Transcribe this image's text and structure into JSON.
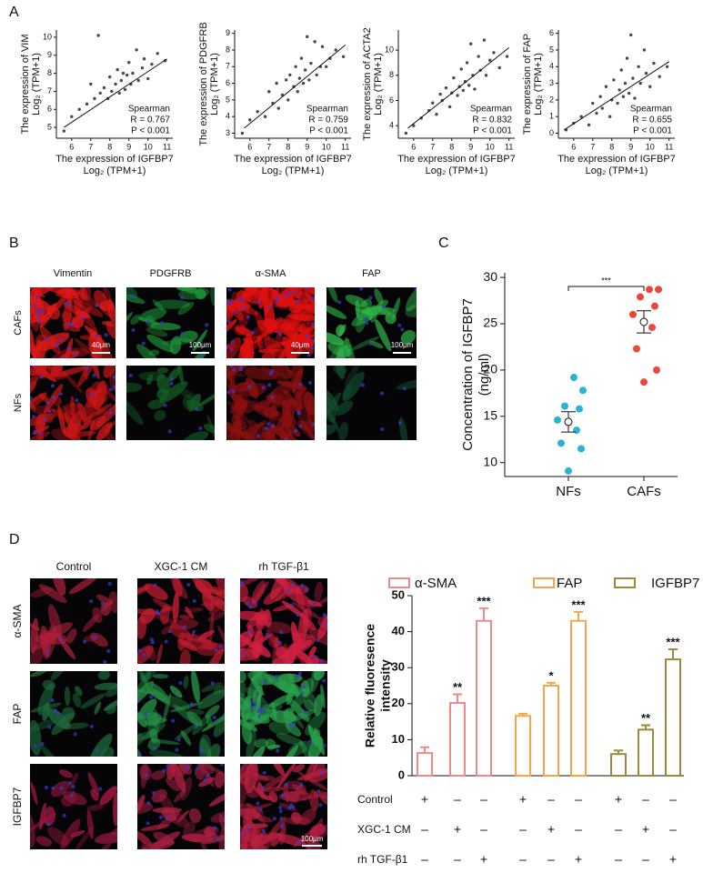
{
  "figure": {
    "panel_labels": [
      "A",
      "B",
      "C",
      "D"
    ],
    "panel_b": {
      "columns": [
        "Vimentin",
        "PDGFRB",
        "α-SMA",
        "FAP"
      ],
      "rows": [
        "CAFs",
        "NFs"
      ],
      "scale_bars": [
        "40μm",
        "100μm",
        "40μm",
        "100μm"
      ]
    },
    "panel_d": {
      "columns": [
        "Control",
        "XGC-1 CM",
        "rh TGF-β1"
      ],
      "rows": [
        "α-SMA",
        "FAP",
        "IGFBP7"
      ],
      "scale_bar": "100μm"
    }
  },
  "chart_data": [
    {
      "type": "scatter",
      "x_label": "The expression of IGFBP7",
      "x_unit": "Log₂ (TPM+1)",
      "y_label": "The expression of VIM",
      "y_unit": "Log₂ (TPM+1)",
      "annotations": [
        "Spearman",
        "R = 0.767",
        "P < 0.001"
      ],
      "x": [
        5.6,
        6.0,
        6.4,
        6.8,
        7.0,
        7.2,
        7.4,
        7.5,
        7.7,
        7.9,
        8.0,
        8.1,
        8.3,
        8.4,
        8.5,
        8.6,
        8.7,
        8.8,
        8.9,
        9.0,
        9.1,
        9.2,
        9.4,
        9.5,
        9.7,
        9.8,
        10.0,
        10.2,
        10.5,
        10.9
      ],
      "y": [
        4.8,
        5.6,
        6.0,
        6.3,
        7.4,
        6.6,
        10.1,
        6.9,
        7.2,
        6.6,
        7.8,
        7.0,
        7.4,
        8.2,
        6.9,
        7.6,
        8.0,
        7.1,
        7.9,
        8.6,
        7.4,
        8.0,
        9.3,
        7.6,
        8.3,
        8.8,
        7.7,
        8.5,
        9.1,
        8.7
      ],
      "fit": {
        "x": [
          5.6,
          11
        ],
        "y": [
          5.0,
          8.8
        ]
      },
      "color": "#4a4a4a",
      "xlim": [
        5.2,
        11.3
      ],
      "xticks": [
        6,
        7,
        8,
        9,
        10,
        11
      ],
      "ylim": [
        4.4,
        10.4
      ],
      "yticks": [
        5,
        6,
        7,
        8,
        9,
        10
      ]
    },
    {
      "type": "scatter",
      "x_label": "The expression of IGFBP7",
      "x_unit": "Log₂ (TPM+1)",
      "y_label": "The expression of PDGFRB",
      "y_unit": "Log₂ (TPM+1)",
      "annotations": [
        "Spearman",
        "R = 0.759",
        "P < 0.001"
      ],
      "x": [
        5.6,
        6.0,
        6.4,
        6.8,
        7.0,
        7.2,
        7.4,
        7.5,
        7.7,
        7.9,
        8.0,
        8.1,
        8.3,
        8.4,
        8.5,
        8.6,
        8.7,
        8.8,
        8.9,
        9.0,
        9.1,
        9.2,
        9.4,
        9.5,
        9.7,
        9.8,
        10.0,
        10.2,
        10.5,
        10.9
      ],
      "y": [
        3.0,
        3.8,
        4.3,
        4.0,
        5.5,
        4.8,
        6.0,
        4.5,
        5.3,
        6.2,
        5.0,
        6.5,
        5.8,
        7.0,
        5.5,
        6.3,
        7.5,
        6.0,
        6.8,
        8.8,
        6.2,
        7.2,
        8.5,
        6.5,
        7.0,
        8.2,
        7.0,
        7.5,
        8.0,
        7.6
      ],
      "fit": {
        "x": [
          5.7,
          11
        ],
        "y": [
          3.3,
          8.3
        ]
      },
      "color": "#4a4a4a",
      "xlim": [
        5.2,
        11.3
      ],
      "xticks": [
        6,
        7,
        8,
        9,
        10,
        11
      ],
      "ylim": [
        2.7,
        9.2
      ],
      "yticks": [
        3,
        4,
        5,
        6,
        7,
        8,
        9
      ]
    },
    {
      "type": "scatter",
      "x_label": "The expression of IGFBP7",
      "x_unit": "Log₂ (TPM+1)",
      "y_label": "The expression of ACTA2",
      "y_unit": "Log₂ (TPM+1)",
      "annotations": [
        "Spearman",
        "R = 0.832",
        "P < 0.001"
      ],
      "x": [
        5.6,
        6.0,
        6.4,
        6.8,
        7.0,
        7.2,
        7.4,
        7.5,
        7.7,
        7.9,
        8.0,
        8.1,
        8.3,
        8.4,
        8.5,
        8.6,
        8.7,
        8.8,
        8.9,
        9.0,
        9.1,
        9.2,
        9.4,
        9.5,
        9.7,
        9.8,
        10.0,
        10.2,
        10.5,
        10.9
      ],
      "y": [
        3.4,
        4.0,
        4.6,
        5.2,
        5.8,
        4.9,
        6.5,
        6.0,
        7.0,
        5.5,
        6.6,
        7.8,
        6.4,
        7.1,
        8.5,
        6.8,
        7.5,
        9.0,
        7.2,
        10.5,
        8.0,
        6.9,
        9.5,
        8.4,
        10.8,
        8.0,
        9.2,
        9.8,
        8.6,
        9.5
      ],
      "fit": {
        "x": [
          5.7,
          11
        ],
        "y": [
          3.8,
          10.2
        ]
      },
      "color": "#4a4a4a",
      "xlim": [
        5.2,
        11.3
      ],
      "xticks": [
        6,
        7,
        8,
        9,
        10,
        11
      ],
      "ylim": [
        3.0,
        11.6
      ],
      "yticks": [
        4,
        6,
        8,
        10
      ]
    },
    {
      "type": "scatter",
      "x_label": "The expression of IGFBP7",
      "x_unit": "Log₂ (TPM+1)",
      "y_label": "The expression of FAP",
      "y_unit": "Log₂ (TPM+1)",
      "annotations": [
        "Spearman",
        "R = 0.655",
        "P < 0.001"
      ],
      "x": [
        5.6,
        6.0,
        6.4,
        6.8,
        7.0,
        7.2,
        7.4,
        7.5,
        7.7,
        7.9,
        8.0,
        8.1,
        8.3,
        8.4,
        8.5,
        8.6,
        8.7,
        8.8,
        8.9,
        9.0,
        9.1,
        9.2,
        9.4,
        9.5,
        9.7,
        9.8,
        10.0,
        10.2,
        10.5,
        10.9
      ],
      "y": [
        0.2,
        0.6,
        1.0,
        0.5,
        1.8,
        1.2,
        2.2,
        1.5,
        2.8,
        1.0,
        2.0,
        3.2,
        1.8,
        2.6,
        3.8,
        2.2,
        3.0,
        4.5,
        2.4,
        5.9,
        3.3,
        2.1,
        4.0,
        3.0,
        5.0,
        3.6,
        2.8,
        4.2,
        3.4,
        4.0
      ],
      "fit": {
        "x": [
          5.5,
          11
        ],
        "y": [
          0.2,
          4.3
        ]
      },
      "color": "#4a4a4a",
      "xlim": [
        5.2,
        11.3
      ],
      "xticks": [
        6,
        7,
        8,
        9,
        10,
        11
      ],
      "ylim": [
        -0.3,
        6.2
      ],
      "yticks": [
        0,
        1,
        2,
        3,
        4,
        5,
        6
      ]
    },
    {
      "type": "strip",
      "y_label": "Concentration of IGFBP7",
      "y_unit": "(ng/ml)",
      "categories": [
        "NFs",
        "CAFs"
      ],
      "groups": [
        {
          "color": "#2bb3d4",
          "values": [
            19.2,
            17.8,
            16.1,
            15.8,
            14.6,
            13.5,
            12.1,
            11.5,
            9.1
          ],
          "mean": 14.4,
          "sem": 1.1
        },
        {
          "color": "#e8493a",
          "values": [
            28.7,
            28.7,
            27.9,
            26.9,
            26.0,
            24.6,
            22.3,
            20.0,
            18.7
          ],
          "mean": 25.2,
          "sem": 1.2
        }
      ],
      "significance": "***",
      "ylim": [
        8.5,
        30.5
      ],
      "yticks": [
        10,
        15,
        20,
        25,
        30
      ]
    },
    {
      "type": "bar",
      "y_label": "Relative fluoresence",
      "y_unit": "intensity",
      "series": [
        {
          "name": "α-SMA",
          "color": "#f08a8a",
          "values": [
            6.3,
            20.2,
            43.0
          ],
          "errors": [
            1.6,
            2.4,
            3.5
          ],
          "labels": [
            null,
            "**",
            "***"
          ]
        },
        {
          "name": "FAP",
          "color": "#f5a54a",
          "values": [
            16.6,
            25.0,
            43.0
          ],
          "errors": [
            0.6,
            0.8,
            2.5
          ],
          "labels": [
            null,
            "*",
            "***"
          ]
        },
        {
          "name": "IGFBP7",
          "color": "#9a8a3a",
          "values": [
            6.0,
            12.8,
            32.3
          ],
          "errors": [
            1.0,
            1.2,
            2.8
          ],
          "labels": [
            null,
            "**",
            "***"
          ]
        }
      ],
      "conditions": [
        {
          "name": "Control",
          "signs": [
            "+",
            "–",
            "–",
            "+",
            "–",
            "–",
            "+",
            "–",
            "–"
          ]
        },
        {
          "name": "XGC-1 CM",
          "signs": [
            "–",
            "+",
            "–",
            "–",
            "+",
            "–",
            "–",
            "+",
            "–"
          ]
        },
        {
          "name": "rh TGF-β1",
          "signs": [
            "–",
            "–",
            "+",
            "–",
            "–",
            "+",
            "–",
            "–",
            "+"
          ]
        }
      ],
      "ylim": [
        0,
        50
      ],
      "yticks": [
        0,
        10,
        20,
        30,
        40,
        50
      ]
    }
  ]
}
